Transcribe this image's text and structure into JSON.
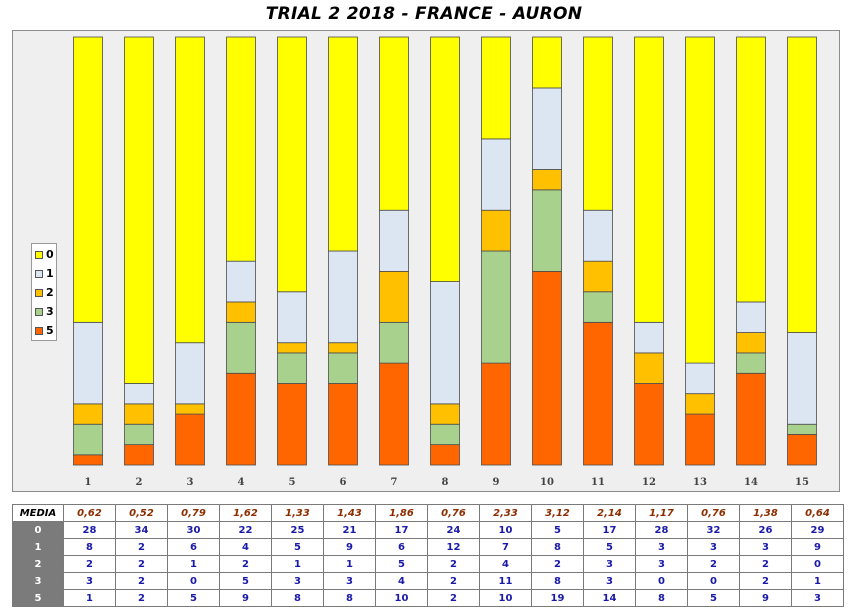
{
  "chart_data": {
    "type": "bar",
    "stacked": "percent",
    "title": "TRIAL 2 2018 - FRANCE - AURON",
    "categories": [
      "1",
      "2",
      "3",
      "4",
      "5",
      "6",
      "7",
      "8",
      "9",
      "10",
      "11",
      "12",
      "13",
      "14",
      "15"
    ],
    "series": [
      {
        "name": "5",
        "color": "#ff6600",
        "values": [
          1,
          2,
          5,
          9,
          8,
          8,
          10,
          2,
          10,
          19,
          14,
          8,
          5,
          9,
          3
        ]
      },
      {
        "name": "3",
        "color": "#a9d18e",
        "values": [
          3,
          2,
          0,
          5,
          3,
          3,
          4,
          2,
          11,
          8,
          3,
          0,
          0,
          2,
          1
        ]
      },
      {
        "name": "2",
        "color": "#ffc000",
        "values": [
          2,
          2,
          1,
          2,
          1,
          1,
          5,
          2,
          4,
          2,
          3,
          3,
          2,
          2,
          0
        ]
      },
      {
        "name": "1",
        "color": "#dce6f2",
        "values": [
          8,
          2,
          6,
          4,
          5,
          9,
          6,
          12,
          7,
          8,
          5,
          3,
          3,
          3,
          9
        ]
      },
      {
        "name": "0",
        "color": "#ffff00",
        "values": [
          28,
          34,
          30,
          22,
          25,
          21,
          17,
          24,
          10,
          5,
          17,
          28,
          32,
          26,
          29
        ]
      }
    ],
    "legend_order": [
      "0",
      "1",
      "2",
      "3",
      "5"
    ],
    "legend_position": "left",
    "grid": false
  },
  "table": {
    "media_label": "MEDIA",
    "media": [
      "0,62",
      "0,52",
      "0,79",
      "1,62",
      "1,33",
      "1,43",
      "1,86",
      "0,76",
      "2,33",
      "3,12",
      "2,14",
      "1,17",
      "0,76",
      "1,38",
      "0,64"
    ],
    "rows": [
      {
        "label": "0",
        "values": [
          "28",
          "34",
          "30",
          "22",
          "25",
          "21",
          "17",
          "24",
          "10",
          "5",
          "17",
          "28",
          "32",
          "26",
          "29"
        ]
      },
      {
        "label": "1",
        "values": [
          "8",
          "2",
          "6",
          "4",
          "5",
          "9",
          "6",
          "12",
          "7",
          "8",
          "5",
          "3",
          "3",
          "3",
          "9"
        ]
      },
      {
        "label": "2",
        "values": [
          "2",
          "2",
          "1",
          "2",
          "1",
          "1",
          "5",
          "2",
          "4",
          "2",
          "3",
          "3",
          "2",
          "2",
          "0"
        ]
      },
      {
        "label": "3",
        "values": [
          "3",
          "2",
          "0",
          "5",
          "3",
          "3",
          "4",
          "2",
          "11",
          "8",
          "3",
          "0",
          "0",
          "2",
          "1"
        ]
      },
      {
        "label": "5",
        "values": [
          "1",
          "2",
          "5",
          "9",
          "8",
          "8",
          "10",
          "2",
          "10",
          "19",
          "14",
          "8",
          "5",
          "9",
          "3"
        ]
      }
    ]
  }
}
